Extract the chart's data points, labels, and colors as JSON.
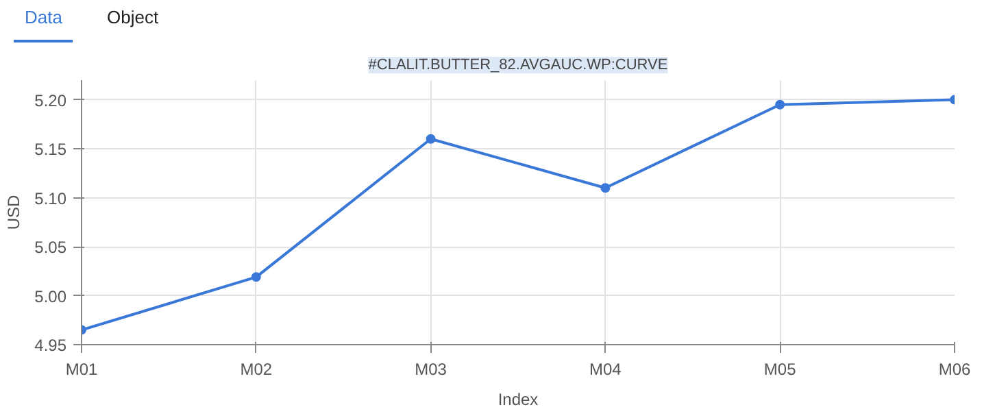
{
  "chart_data": {
    "type": "line",
    "title": "#CLALIT.BUTTER_82.AVGAUC.WP:CURVE",
    "annotations": [
      "Data",
      "Object"
    ],
    "xlabel": "Index",
    "ylabel": "USD",
    "categories": [
      "M01",
      "M02",
      "M03",
      "M04",
      "M05",
      "M06"
    ],
    "series": [
      {
        "color": "#3a78d8",
        "values": [
          4.965,
          5.019,
          5.16,
          5.11,
          5.195,
          5.2
        ]
      }
    ],
    "ylim": [
      4.95,
      5.22
    ],
    "yticks": [
      4.95,
      {
        "value": 5.0,
        "label": "5.00"
      },
      5.05,
      {
        "value": 5.1,
        "label": "5.10"
      },
      5.15,
      {
        "value": 5.2,
        "label": "5.20"
      }
    ],
    "grid": true,
    "marker": "circle",
    "line_style": "solid"
  }
}
